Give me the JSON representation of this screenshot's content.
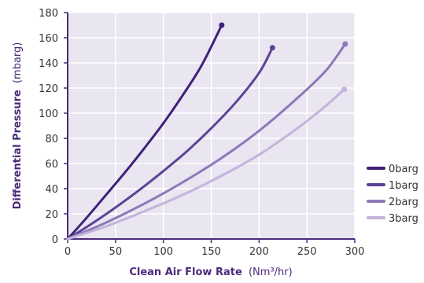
{
  "chart_data": {
    "type": "line",
    "title": "",
    "xlabel_bold": "Clean Air Flow Rate",
    "xlabel_unit": "(Nm³/hr)",
    "ylabel_bold": "Differential Pressure",
    "ylabel_unit": "(mbarg)",
    "xlim": [
      0,
      300
    ],
    "ylim": [
      0,
      180
    ],
    "x_ticks": [
      0,
      50,
      100,
      150,
      200,
      250,
      300
    ],
    "y_ticks": [
      0,
      20,
      40,
      60,
      80,
      100,
      120,
      140,
      160,
      180
    ],
    "grid": true,
    "legend_position": "right",
    "colors": {
      "plot_background": "#e9e5f1",
      "grid": "#ffffff",
      "axis": "#4b2a7b"
    },
    "series": [
      {
        "name": "0barg",
        "color": "#3f2178",
        "x": [
          0,
          20,
          40,
          60,
          80,
          100,
          120,
          140,
          161
        ],
        "y": [
          0,
          17,
          35,
          53,
          72,
          92,
          114,
          138,
          170
        ]
      },
      {
        "name": "1barg",
        "color": "#5c4395",
        "x": [
          0,
          25,
          50,
          75,
          100,
          125,
          150,
          175,
          200,
          214
        ],
        "y": [
          0,
          12,
          25,
          39,
          54,
          70,
          88,
          108,
          132,
          152
        ]
      },
      {
        "name": "2barg",
        "color": "#8c78b8",
        "x": [
          0,
          40,
          80,
          120,
          160,
          200,
          240,
          270,
          290
        ],
        "y": [
          0,
          13,
          28,
          45,
          64,
          86,
          112,
          134,
          155
        ]
      },
      {
        "name": "3barg",
        "color": "#c1b5da",
        "x": [
          0,
          40,
          80,
          120,
          160,
          200,
          240,
          270,
          289
        ],
        "y": [
          0,
          10,
          22,
          35,
          50,
          67,
          88,
          106,
          119
        ]
      }
    ]
  }
}
